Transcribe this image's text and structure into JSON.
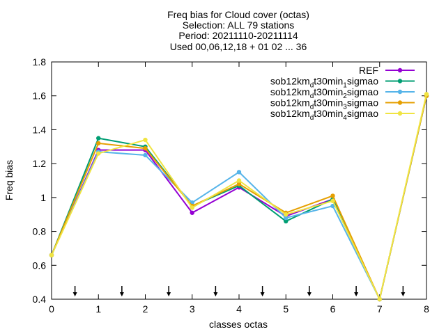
{
  "chart_data": {
    "type": "line",
    "title_lines": [
      "Freq bias  for Cloud cover (octas)",
      "Selection: ALL     79 stations",
      "Period: 20211110-20211114",
      "Used 00,06,12,18 + 01 02 ... 36"
    ],
    "xlabel": "classes octas",
    "ylabel": "Freq bias",
    "xlim": [
      0,
      8
    ],
    "ylim": [
      0.4,
      1.8
    ],
    "xticks": [
      "0",
      "1",
      "2",
      "3",
      "4",
      "5",
      "6",
      "7",
      "8"
    ],
    "yticks": [
      "0.4",
      "0.6",
      "0.8",
      "1",
      "1.2",
      "1.4",
      "1.6",
      "1.8"
    ],
    "grid": false,
    "legend_position": "top-right",
    "arrow_markers_x": [
      0.5,
      1.5,
      2.5,
      3.5,
      4.5,
      5.5,
      6.5,
      7.5
    ],
    "x": [
      0,
      1,
      2,
      3,
      4,
      5,
      6,
      7,
      8
    ],
    "series": [
      {
        "name": "REF",
        "name_parts": [
          "REF"
        ],
        "color": "#9400d3",
        "values": [
          0.66,
          1.28,
          1.28,
          0.91,
          1.06,
          0.89,
          0.99,
          0.4,
          1.6
        ]
      },
      {
        "name": "sob12km_dt30min_1sigmao",
        "name_parts": [
          "sob12km",
          "d",
          "t30min",
          "1",
          "sigmao"
        ],
        "color": "#009e73",
        "values": [
          0.66,
          1.35,
          1.3,
          0.95,
          1.07,
          0.86,
          0.99,
          0.4,
          1.6
        ]
      },
      {
        "name": "sob12km_dt30min_2sigmao",
        "name_parts": [
          "sob12km",
          "d",
          "t30min",
          "2",
          "sigmao"
        ],
        "color": "#56b4e9",
        "values": [
          0.66,
          1.27,
          1.25,
          0.97,
          1.15,
          0.88,
          0.95,
          0.4,
          1.6
        ]
      },
      {
        "name": "sob12km_dt30min_3sigmao",
        "name_parts": [
          "sob12km",
          "d",
          "t30min",
          "3",
          "sigmao"
        ],
        "color": "#e69f00",
        "values": [
          0.66,
          1.32,
          1.29,
          0.95,
          1.08,
          0.91,
          1.01,
          0.4,
          1.6
        ]
      },
      {
        "name": "sob12km_dt30min_4sigmao",
        "name_parts": [
          "sob12km",
          "d",
          "t30min",
          "4",
          "sigmao"
        ],
        "color": "#f0e442",
        "values": [
          0.66,
          1.26,
          1.34,
          0.94,
          1.1,
          0.9,
          0.98,
          0.4,
          1.61
        ]
      }
    ]
  }
}
